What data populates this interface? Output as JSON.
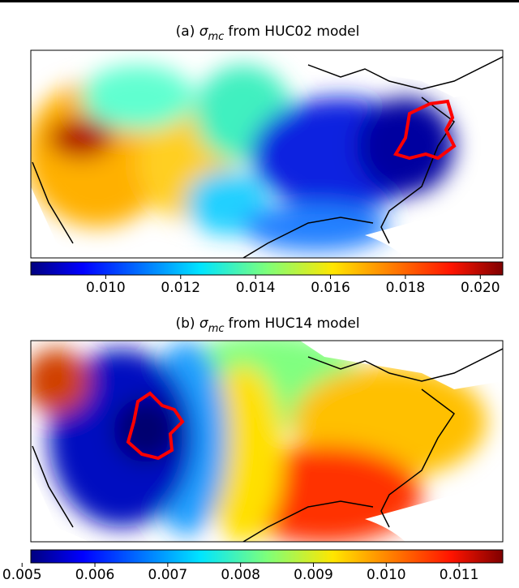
{
  "panels": [
    {
      "label": "(a)",
      "symbol": "σ",
      "subscript": "mc",
      "text": "from HUC02 model",
      "colorbar": {
        "range": [
          0.008,
          0.0206
        ],
        "ticks": [
          {
            "value": 0.01,
            "label": "0.010"
          },
          {
            "value": 0.012,
            "label": "0.012"
          },
          {
            "value": 0.014,
            "label": "0.014"
          },
          {
            "value": 0.016,
            "label": "0.016"
          },
          {
            "value": 0.018,
            "label": "0.018"
          },
          {
            "value": 0.02,
            "label": "0.020"
          }
        ]
      }
    },
    {
      "label": "(b)",
      "symbol": "σ",
      "subscript": "mc",
      "text": "from HUC14 model",
      "colorbar": {
        "range": [
          0.00512,
          0.0116
        ],
        "ticks": [
          {
            "value": 0.005,
            "label": "0.005"
          },
          {
            "value": 0.006,
            "label": "0.006"
          },
          {
            "value": 0.007,
            "label": "0.007"
          },
          {
            "value": 0.008,
            "label": "0.008"
          },
          {
            "value": 0.009,
            "label": "0.009"
          },
          {
            "value": 0.01,
            "label": "0.010"
          },
          {
            "value": 0.011,
            "label": "0.011"
          }
        ]
      }
    }
  ]
}
